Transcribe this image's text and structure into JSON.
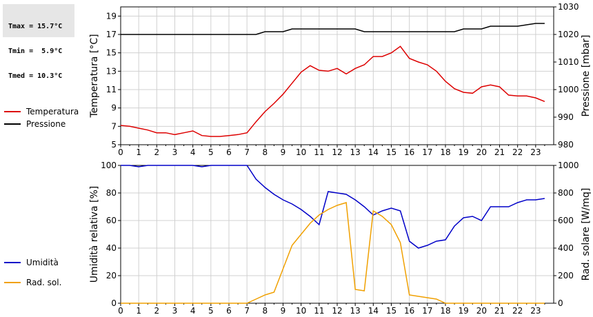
{
  "stats": {
    "tmax": "Tmax = 15.7°C",
    "tmin": "Tmin =  5.9°C",
    "tmed": "Tmed = 10.3°C"
  },
  "chart_data": [
    {
      "type": "line",
      "title": "",
      "xlabel": "",
      "ylabel_left": "Temperatura [°C]",
      "ylabel_right": "Pressione [mbar]",
      "xlim": [
        0,
        24
      ],
      "xticks": [
        "0",
        "1",
        "2",
        "3",
        "4",
        "5",
        "6",
        "7",
        "8",
        "9",
        "10",
        "11",
        "12",
        "13",
        "14",
        "15",
        "16",
        "17",
        "18",
        "19",
        "20",
        "21",
        "22",
        "23"
      ],
      "ylim_left": [
        5,
        20
      ],
      "yticks_left": [
        "5",
        "7",
        "9",
        "11",
        "13",
        "15",
        "17",
        "19"
      ],
      "ylim_right": [
        980,
        1030
      ],
      "yticks_right": [
        "980",
        "990",
        "1000",
        "1010",
        "1020",
        "1030"
      ],
      "grid": true,
      "legend_placement": "left",
      "series": [
        {
          "name": "Temperatura",
          "axis": "left",
          "color": "#dd0000",
          "x": [
            0,
            0.5,
            1,
            1.5,
            2,
            2.5,
            3,
            3.5,
            4,
            4.5,
            5,
            5.5,
            6,
            6.5,
            7,
            7.5,
            8,
            8.5,
            9,
            9.5,
            10,
            10.5,
            11,
            11.5,
            12,
            12.5,
            13,
            13.5,
            14,
            14.5,
            15,
            15.5,
            16,
            16.5,
            17,
            17.5,
            18,
            18.5,
            19,
            19.5,
            20,
            20.5,
            21,
            21.5,
            22,
            22.5,
            23,
            23.5
          ],
          "y": [
            7.1,
            7.0,
            6.8,
            6.6,
            6.3,
            6.3,
            6.1,
            6.3,
            6.5,
            6.0,
            5.9,
            5.9,
            6.0,
            6.1,
            6.3,
            7.5,
            8.6,
            9.5,
            10.5,
            11.7,
            12.9,
            13.6,
            13.1,
            13.0,
            13.3,
            12.7,
            13.3,
            13.7,
            14.6,
            14.6,
            15.0,
            15.7,
            14.4,
            14.0,
            13.7,
            13.0,
            11.9,
            11.1,
            10.7,
            10.6,
            11.3,
            11.5,
            11.3,
            10.4,
            10.3,
            10.3,
            10.1,
            9.7
          ]
        },
        {
          "name": "Pressione",
          "axis": "right",
          "color": "#000000",
          "x": [
            0,
            7.5,
            8,
            9,
            9.5,
            13,
            13.5,
            18.5,
            19,
            20,
            20.5,
            22,
            23,
            23.5
          ],
          "y": [
            1020,
            1020,
            1021,
            1021,
            1022,
            1022,
            1021,
            1021,
            1022,
            1022,
            1023,
            1023,
            1024,
            1024
          ]
        }
      ]
    },
    {
      "type": "line",
      "title": "",
      "xlabel": "",
      "ylabel_left": "Umidità relativa [%]",
      "ylabel_right": "Rad. solare [W/mq]",
      "xlim": [
        0,
        24
      ],
      "xticks": [
        "0",
        "1",
        "2",
        "3",
        "4",
        "5",
        "6",
        "7",
        "8",
        "9",
        "10",
        "11",
        "12",
        "13",
        "14",
        "15",
        "16",
        "17",
        "18",
        "19",
        "20",
        "21",
        "22",
        "23"
      ],
      "ylim_left": [
        0,
        100
      ],
      "yticks_left": [
        "0",
        "20",
        "40",
        "60",
        "80",
        "100"
      ],
      "ylim_right": [
        0,
        1000
      ],
      "yticks_right": [
        "0",
        "200",
        "400",
        "600",
        "800",
        "1000"
      ],
      "grid": true,
      "legend_placement": "left",
      "series": [
        {
          "name": "Umidità",
          "axis": "left",
          "color": "#0000c8",
          "x": [
            0,
            0.5,
            1,
            1.5,
            2,
            2.5,
            3,
            3.5,
            4,
            4.5,
            5,
            5.5,
            6,
            6.5,
            7,
            7.5,
            8,
            8.5,
            9,
            9.5,
            10,
            10.5,
            11,
            11.5,
            12,
            12.5,
            13,
            13.5,
            14,
            14.5,
            15,
            15.5,
            16,
            16.5,
            17,
            17.5,
            18,
            18.5,
            19,
            19.5,
            20,
            20.5,
            21,
            21.5,
            22,
            22.5,
            23,
            23.5
          ],
          "y": [
            100,
            100,
            99,
            100,
            100,
            100,
            100,
            100,
            100,
            99,
            100,
            100,
            100,
            100,
            100,
            90,
            84,
            79,
            75,
            72,
            68,
            63,
            57,
            81,
            80,
            79,
            75,
            70,
            64,
            67,
            69,
            67,
            45,
            40,
            42,
            45,
            46,
            56,
            62,
            63,
            60,
            70,
            70,
            70,
            73,
            75,
            75,
            76
          ]
        },
        {
          "name": "Rad. sol.",
          "axis": "right",
          "color": "#f0a000",
          "x": [
            0,
            7,
            7.5,
            8,
            8.5,
            9,
            9.5,
            10,
            10.5,
            11,
            11.5,
            12,
            12.5,
            13,
            13.5,
            14,
            14.5,
            15,
            15.5,
            16,
            16.5,
            17,
            17.5,
            18,
            23.5
          ],
          "y": [
            0,
            0,
            30,
            60,
            80,
            250,
            420,
            500,
            580,
            640,
            680,
            710,
            730,
            100,
            90,
            670,
            630,
            570,
            440,
            60,
            50,
            40,
            30,
            0,
            0
          ]
        }
      ]
    }
  ]
}
